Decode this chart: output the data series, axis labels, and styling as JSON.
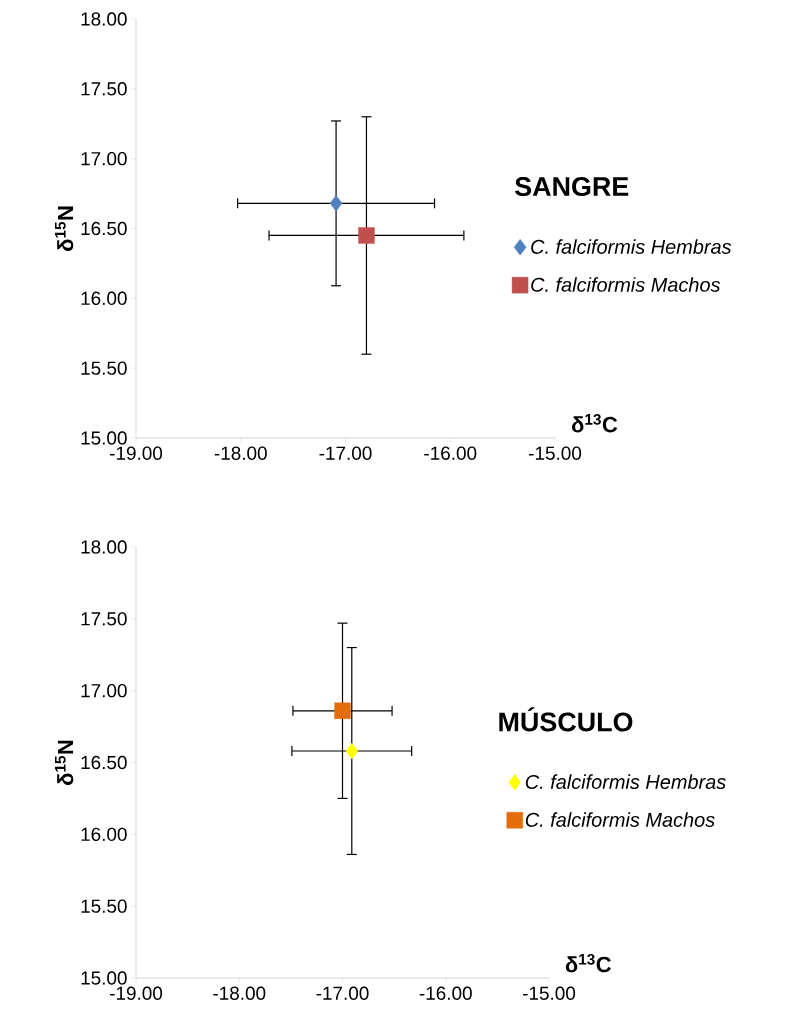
{
  "chart_data": [
    {
      "type": "scatter",
      "title": "SANGRE",
      "xlabel": "δ$^{13}$C",
      "ylabel": "δ$^{15}$N",
      "legend": "right",
      "xlim": [
        -19,
        -15
      ],
      "ylim": [
        15,
        18
      ],
      "xticks": [
        {
          "value": -19,
          "label": "-19.00"
        },
        {
          "value": -18,
          "label": "-18.00"
        },
        {
          "value": -17,
          "label": "-17.00"
        },
        {
          "value": -16,
          "label": "-16.00"
        },
        {
          "value": -15,
          "label": "-15.00"
        }
      ],
      "yticks": [
        {
          "value": 15,
          "label": "15.00"
        },
        {
          "value": 15.5,
          "label": "15.50"
        },
        {
          "value": 16,
          "label": "16.00"
        },
        {
          "value": 16.5,
          "label": "16.50"
        },
        {
          "value": 17,
          "label": "17.00"
        },
        {
          "value": 17.5,
          "label": "17.50"
        },
        {
          "value": 18,
          "label": "18.00"
        }
      ],
      "series": [
        {
          "name": "C. falciformis Hembras",
          "color": "#4f81bd",
          "marker": "diamond",
          "x": [
            -17.09
          ],
          "values": [
            16.68
          ],
          "xerrors": [
            0.94
          ],
          "errors": [
            0.59
          ]
        },
        {
          "name": "C. falciformis Machos",
          "color": "#c0504d",
          "marker": "square",
          "x": [
            -16.8
          ],
          "values": [
            16.45
          ],
          "xerrors": [
            0.93
          ],
          "errors": [
            0.85
          ]
        }
      ]
    },
    {
      "type": "scatter",
      "title": "MÚSCULO",
      "xlabel": "δ$^{13}$C",
      "ylabel": "δ$^{15}$N",
      "legend": "right",
      "xlim": [
        -19,
        -15
      ],
      "ylim": [
        15,
        18
      ],
      "xticks": [
        {
          "value": -19,
          "label": "-19.00"
        },
        {
          "value": -18,
          "label": "-18.00"
        },
        {
          "value": -17,
          "label": "-17.00"
        },
        {
          "value": -16,
          "label": "-16.00"
        },
        {
          "value": -15,
          "label": "-15.00"
        }
      ],
      "yticks": [
        {
          "value": 15,
          "label": "15.00"
        },
        {
          "value": 15.5,
          "label": "15.50"
        },
        {
          "value": 16,
          "label": "16.00"
        },
        {
          "value": 16.5,
          "label": "16.50"
        },
        {
          "value": 17,
          "label": "17.00"
        },
        {
          "value": 17.5,
          "label": "17.50"
        },
        {
          "value": 18,
          "label": "18.00"
        }
      ],
      "series": [
        {
          "name": "C. falciformis Hembras",
          "color": "#ffff00",
          "marker": "diamond",
          "x": [
            -16.91
          ],
          "values": [
            16.58
          ],
          "xerrors": [
            0.58
          ],
          "errors": [
            0.72
          ]
        },
        {
          "name": "C. falciformis Machos",
          "color": "#e46c0a",
          "marker": "square",
          "x": [
            -17.0
          ],
          "values": [
            16.86
          ],
          "xerrors": [
            0.48
          ],
          "errors": [
            0.61
          ]
        }
      ]
    }
  ]
}
